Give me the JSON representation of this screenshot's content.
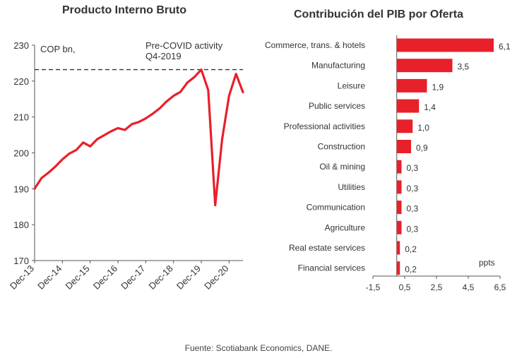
{
  "left_chart": {
    "title": "Producto Interno Bruto",
    "unit_label": "COP bn,",
    "annotation_line1": "Pre-COVID activity",
    "annotation_line2": "Q4-2019",
    "reference_value": 223.2,
    "series_color": "#e8202a",
    "chart_data": {
      "type": "line",
      "ylim": [
        170,
        230
      ],
      "yticks": [
        170,
        180,
        190,
        200,
        210,
        220,
        230
      ],
      "xtick_labels": [
        "Dec-13",
        "Dec-14",
        "Dec-15",
        "Dec-16",
        "Dec-17",
        "Dec-18",
        "Dec-19",
        "Dec-20"
      ],
      "xtick_index": [
        0,
        4,
        8,
        12,
        16,
        20,
        24,
        28
      ],
      "values": [
        190.0,
        193.0,
        194.5,
        196.2,
        198.2,
        199.8,
        200.8,
        202.9,
        201.8,
        203.8,
        204.9,
        206.0,
        206.9,
        206.4,
        208.0,
        208.6,
        209.6,
        210.9,
        212.4,
        214.3,
        215.9,
        217.0,
        219.6,
        221.1,
        223.2,
        217.5,
        185.4,
        203.8,
        215.9,
        222.0,
        216.9
      ]
    }
  },
  "right_chart": {
    "title": "Contribución del PIB por Oferta",
    "unit_label": "ppts",
    "bar_color": "#e8202a",
    "chart_data": {
      "type": "bar",
      "orientation": "horizontal",
      "categories": [
        "Commerce, trans. & hotels",
        "Manufacturing",
        "Leisure",
        "Public services",
        "Professional activities",
        "Construction",
        "Oil & mining",
        "Utilities",
        "Communication",
        "Agriculture",
        "Real estate services",
        "Financial services"
      ],
      "values": [
        6.1,
        3.5,
        1.9,
        1.4,
        1.0,
        0.9,
        0.3,
        0.3,
        0.3,
        0.3,
        0.2,
        0.2
      ],
      "value_labels": [
        "6,1",
        "3,5",
        "1,9",
        "1,4",
        "1,0",
        "0,9",
        "0,3",
        "0,3",
        "0,3",
        "0,3",
        "0,2",
        "0,2"
      ],
      "xlim": [
        -1.5,
        6.5
      ],
      "xticks": [
        -1.5,
        0.5,
        2.5,
        4.5,
        6.5
      ],
      "xtick_labels": [
        "-1,5",
        "0,5",
        "2,5",
        "4,5",
        "6,5"
      ]
    }
  },
  "footer": "Fuente: Scotiabank Economics, DANE."
}
